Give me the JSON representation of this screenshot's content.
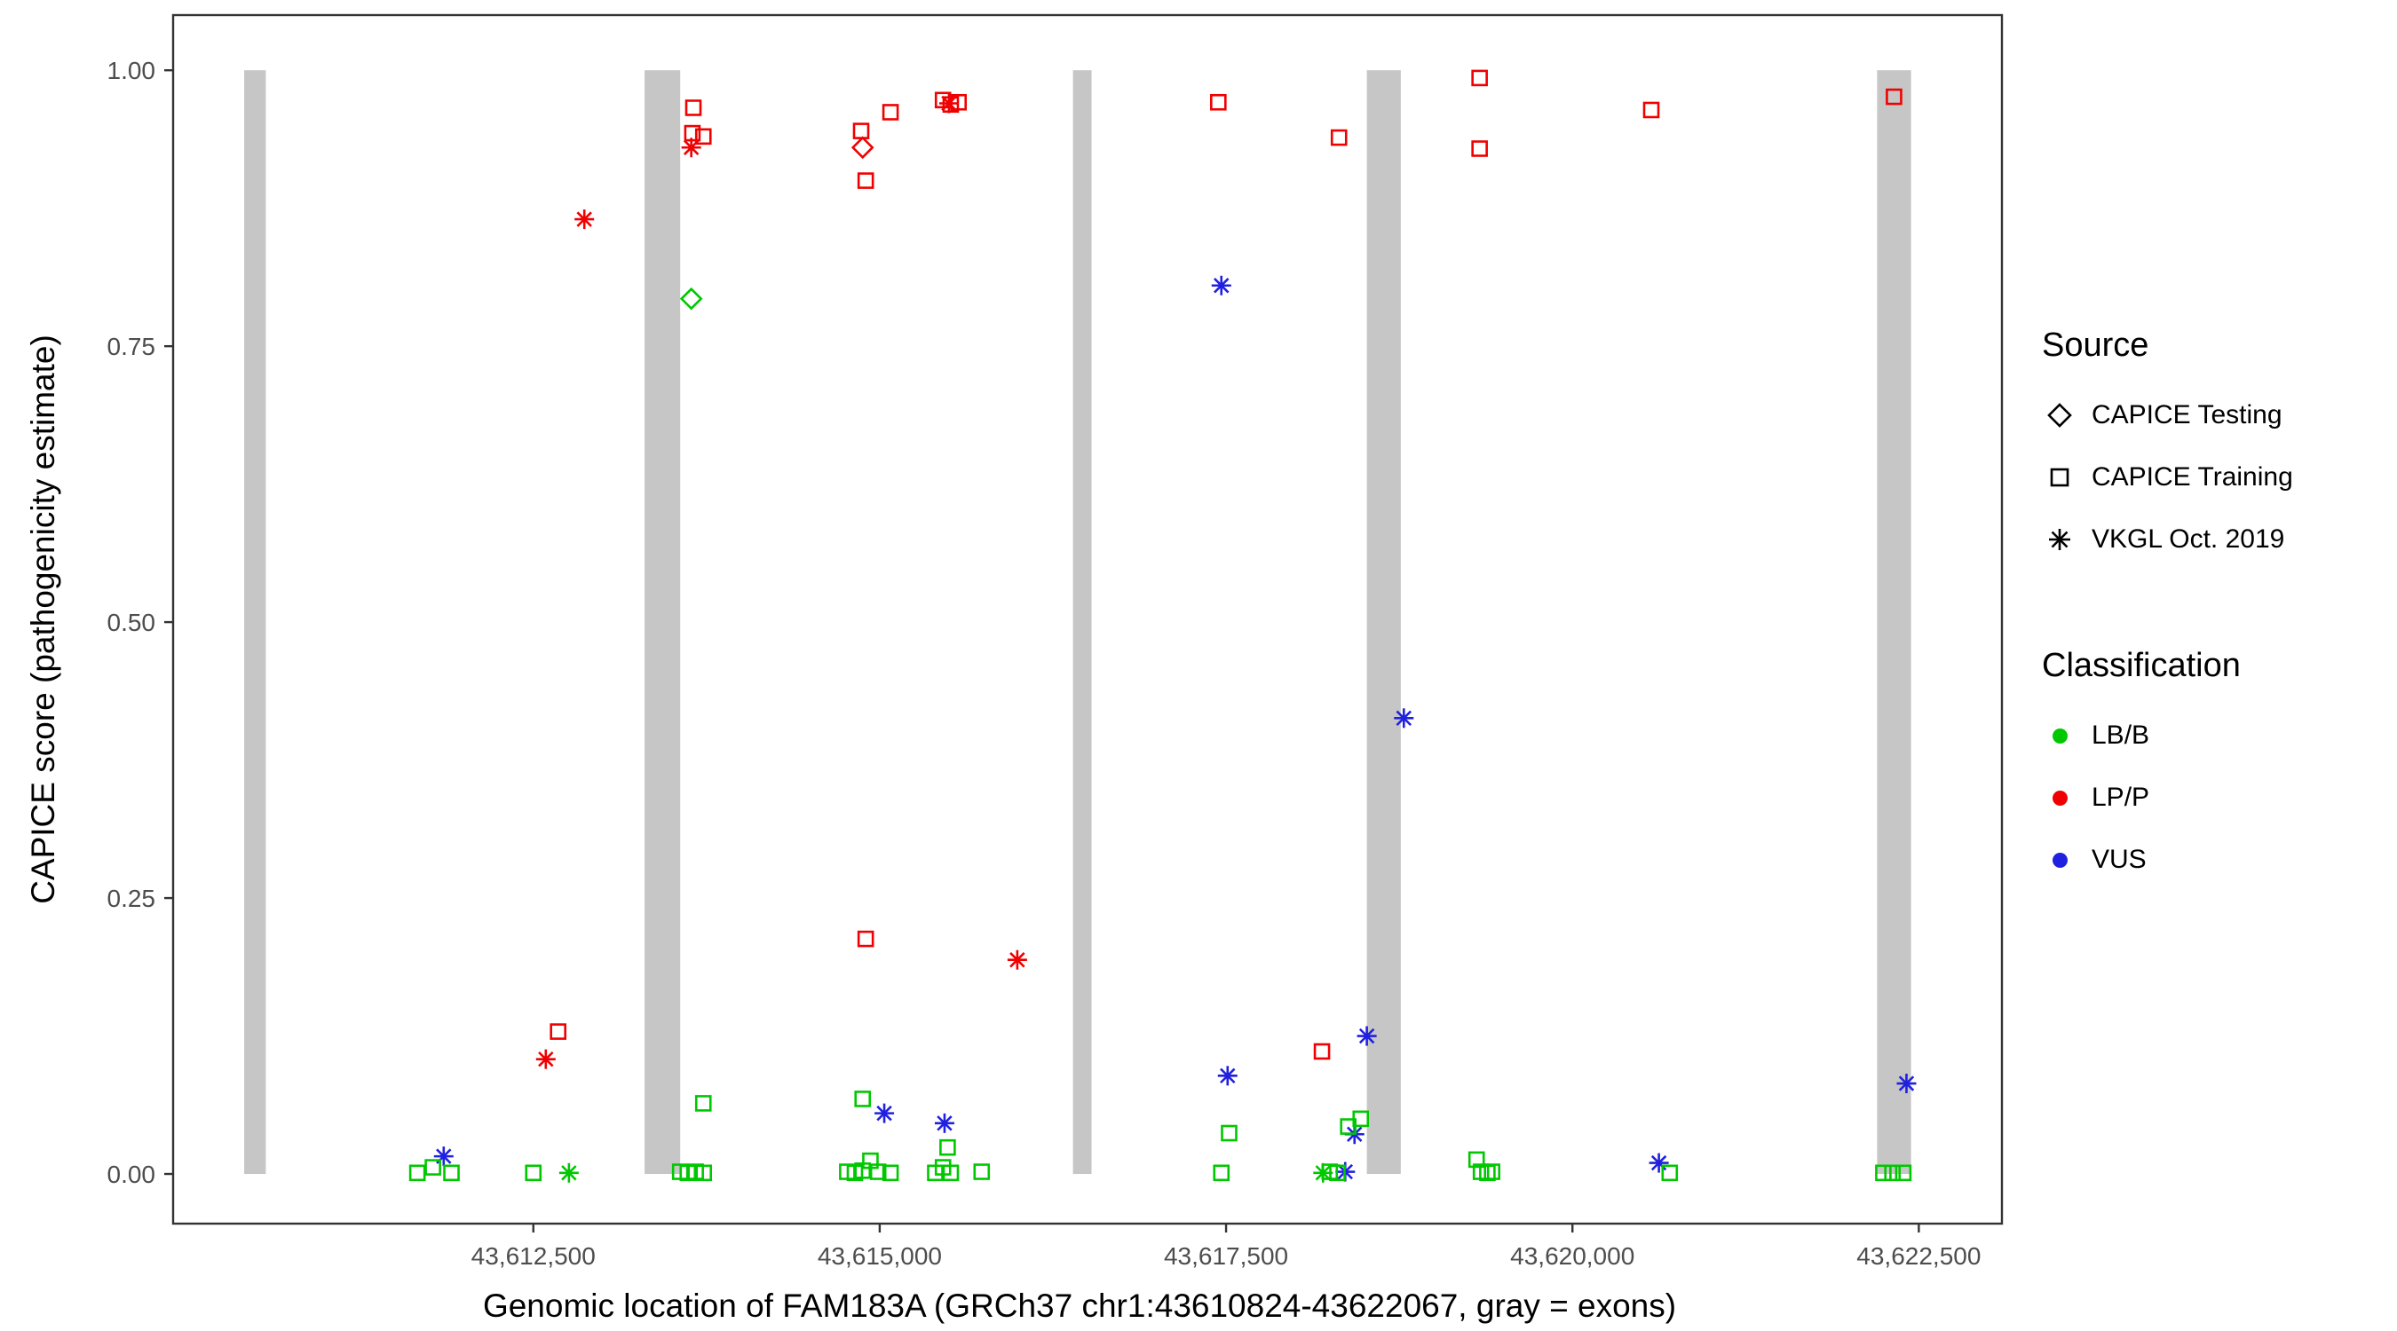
{
  "legend": {
    "source_title": "Source",
    "source_items": [
      "CAPICE Testing",
      "CAPICE Training",
      "VKGL Oct. 2019"
    ],
    "classification_title": "Classification",
    "classification_items": [
      "LB/B",
      "LP/P",
      "VUS"
    ]
  },
  "chart_data": {
    "type": "scatter",
    "title": "",
    "xlabel": "Genomic location of FAM183A (GRCh37 chr1:43610824-43622067, gray = exons)",
    "ylabel": "CAPICE score (pathogenicity estimate)",
    "xlim": [
      43609900,
      43623100
    ],
    "ylim": [
      -0.045,
      1.05
    ],
    "x_ticks": [
      43612500,
      43615000,
      43617500,
      43620000,
      43622500
    ],
    "x_tick_labels": [
      "43,612,500",
      "43,615,000",
      "43,617,500",
      "43,620,000",
      "43,622,500"
    ],
    "y_ticks": [
      0.0,
      0.25,
      0.5,
      0.75,
      1.0
    ],
    "y_tick_labels": [
      "0.00",
      "0.25",
      "0.50",
      "0.75",
      "1.00"
    ],
    "grid": "off",
    "legend_position": "right",
    "exon_note": "gray vertical bars mark exons, drawn from score 0 to 1",
    "exons": [
      [
        43610413,
        43610569
      ],
      [
        43613303,
        43613560
      ],
      [
        43616395,
        43616529
      ],
      [
        43618516,
        43618761
      ],
      [
        43622199,
        43622444
      ]
    ],
    "exon_color": "#c6c6c6",
    "colors": {
      "LB/B": "#00c800",
      "LP/P": "#f00000",
      "VUS": "#2020e0"
    },
    "shapes": {
      "testing": "diamond",
      "training": "square",
      "vkgl": "asterisk"
    },
    "shape_labels": {
      "testing": "CAPICE Testing",
      "training": "CAPICE Training",
      "vkgl": "VKGL Oct. 2019"
    },
    "points_format": [
      "genomic_position",
      "capice_score",
      "classification",
      "source"
    ],
    "points": [
      [
        43612868,
        0.865,
        "LP/P",
        "vkgl"
      ],
      [
        43613655,
        0.966,
        "LP/P",
        "training"
      ],
      [
        43613648,
        0.943,
        "LP/P",
        "training"
      ],
      [
        43613727,
        0.94,
        "LP/P",
        "training"
      ],
      [
        43613640,
        0.93,
        "LP/P",
        "vkgl"
      ],
      [
        43614866,
        0.945,
        "LP/P",
        "training"
      ],
      [
        43614877,
        0.93,
        "LP/P",
        "testing"
      ],
      [
        43614899,
        0.9,
        "LP/P",
        "training"
      ],
      [
        43615078,
        0.962,
        "LP/P",
        "training"
      ],
      [
        43615457,
        0.973,
        "LP/P",
        "training"
      ],
      [
        43615513,
        0.969,
        "LP/P",
        "training"
      ],
      [
        43615569,
        0.971,
        "LP/P",
        "training"
      ],
      [
        43615500,
        0.97,
        "LP/P",
        "vkgl"
      ],
      [
        43617444,
        0.971,
        "LP/P",
        "training"
      ],
      [
        43618315,
        0.939,
        "LP/P",
        "training"
      ],
      [
        43619330,
        0.993,
        "LP/P",
        "training"
      ],
      [
        43619330,
        0.929,
        "LP/P",
        "training"
      ],
      [
        43620569,
        0.964,
        "LP/P",
        "training"
      ],
      [
        43622321,
        0.976,
        "LP/P",
        "training"
      ],
      [
        43614899,
        0.213,
        "LP/P",
        "training"
      ],
      [
        43615993,
        0.194,
        "LP/P",
        "vkgl"
      ],
      [
        43612679,
        0.129,
        "LP/P",
        "training"
      ],
      [
        43612590,
        0.104,
        "LP/P",
        "vkgl"
      ],
      [
        43618192,
        0.111,
        "LP/P",
        "training"
      ],
      [
        43617466,
        0.805,
        "VUS",
        "vkgl"
      ],
      [
        43618783,
        0.413,
        "VUS",
        "vkgl"
      ],
      [
        43618516,
        0.125,
        "VUS",
        "vkgl"
      ],
      [
        43617511,
        0.089,
        "VUS",
        "vkgl"
      ],
      [
        43615033,
        0.055,
        "VUS",
        "vkgl"
      ],
      [
        43615468,
        0.046,
        "VUS",
        "vkgl"
      ],
      [
        43611853,
        0.016,
        "VUS",
        "vkgl"
      ],
      [
        43618427,
        0.036,
        "VUS",
        "vkgl"
      ],
      [
        43618360,
        0.002,
        "VUS",
        "vkgl"
      ],
      [
        43620624,
        0.01,
        "VUS",
        "vkgl"
      ],
      [
        43622411,
        0.082,
        "VUS",
        "vkgl"
      ],
      [
        43613640,
        0.793,
        "LB/B",
        "testing"
      ],
      [
        43613727,
        0.064,
        "LB/B",
        "training"
      ],
      [
        43614877,
        0.068,
        "LB/B",
        "training"
      ],
      [
        43615490,
        0.024,
        "LB/B",
        "training"
      ],
      [
        43617522,
        0.037,
        "LB/B",
        "training"
      ],
      [
        43618382,
        0.043,
        "LB/B",
        "training"
      ],
      [
        43618472,
        0.05,
        "LB/B",
        "training"
      ],
      [
        43611663,
        0.001,
        "LB/B",
        "training"
      ],
      [
        43611775,
        0.006,
        "LB/B",
        "training"
      ],
      [
        43611909,
        0.001,
        "LB/B",
        "training"
      ],
      [
        43612500,
        0.001,
        "LB/B",
        "training"
      ],
      [
        43612757,
        0.001,
        "LB/B",
        "vkgl"
      ],
      [
        43613560,
        0.002,
        "LB/B",
        "training"
      ],
      [
        43613615,
        0.001,
        "LB/B",
        "training"
      ],
      [
        43613672,
        0.002,
        "LB/B",
        "training"
      ],
      [
        43613730,
        0.001,
        "LB/B",
        "training"
      ],
      [
        43614766,
        0.002,
        "LB/B",
        "training"
      ],
      [
        43614821,
        0.001,
        "LB/B",
        "training"
      ],
      [
        43614877,
        0.003,
        "LB/B",
        "training"
      ],
      [
        43614933,
        0.012,
        "LB/B",
        "training"
      ],
      [
        43614989,
        0.002,
        "LB/B",
        "training"
      ],
      [
        43615078,
        0.001,
        "LB/B",
        "training"
      ],
      [
        43615401,
        0.001,
        "LB/B",
        "training"
      ],
      [
        43615457,
        0.006,
        "LB/B",
        "training"
      ],
      [
        43615513,
        0.001,
        "LB/B",
        "training"
      ],
      [
        43615736,
        0.002,
        "LB/B",
        "training"
      ],
      [
        43617466,
        0.001,
        "LB/B",
        "training"
      ],
      [
        43618200,
        0.001,
        "LB/B",
        "vkgl"
      ],
      [
        43618248,
        0.002,
        "LB/B",
        "training"
      ],
      [
        43618304,
        0.001,
        "LB/B",
        "training"
      ],
      [
        43619308,
        0.013,
        "LB/B",
        "training"
      ],
      [
        43619340,
        0.002,
        "LB/B",
        "training"
      ],
      [
        43619386,
        0.001,
        "LB/B",
        "training"
      ],
      [
        43619420,
        0.002,
        "LB/B",
        "training"
      ],
      [
        43620702,
        0.001,
        "LB/B",
        "training"
      ],
      [
        43622244,
        0.001,
        "LB/B",
        "training"
      ],
      [
        43622310,
        0.001,
        "LB/B",
        "training"
      ],
      [
        43622388,
        0.001,
        "LB/B",
        "training"
      ]
    ]
  }
}
